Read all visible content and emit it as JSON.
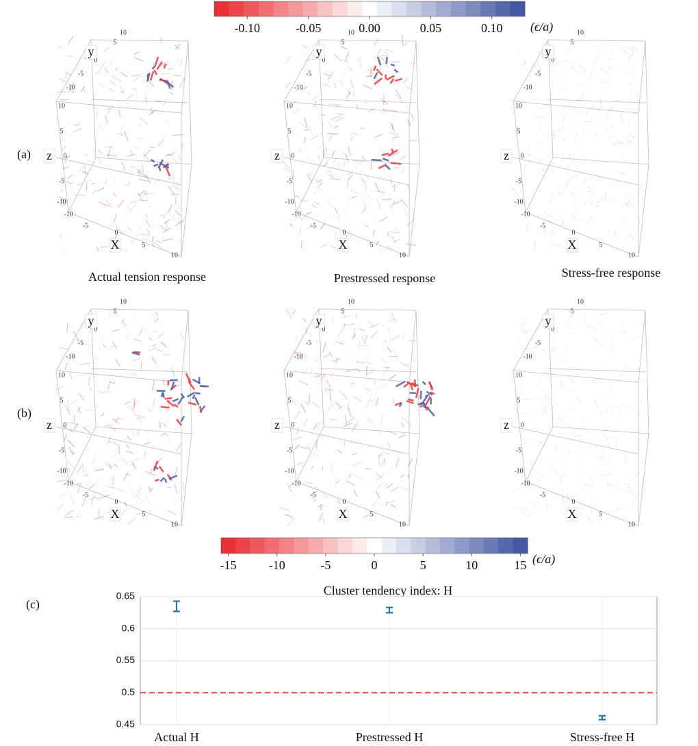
{
  "colorbar_top": {
    "range": [
      -0.127,
      0.127
    ],
    "unit": "(ϵ/a)",
    "ticks": [
      {
        "value": -0.1,
        "label": "-0.10"
      },
      {
        "value": -0.05,
        "label": "-0.05"
      },
      {
        "value": 0,
        "label": "0.00"
      },
      {
        "value": 0.05,
        "label": "0.05"
      },
      {
        "value": 0.1,
        "label": "0.10"
      }
    ]
  },
  "colorbar_bottom": {
    "range": [
      -15.75,
      15.75
    ],
    "unit": "(ϵ/a)",
    "ticks": [
      -15,
      -10,
      -5,
      0,
      5,
      10,
      15
    ]
  },
  "rows": [
    {
      "label": "(a)",
      "panels": [
        "Actual tension response",
        "Prestressed response",
        "Stress-free response"
      ]
    },
    {
      "label": "(b)"
    }
  ],
  "cube_axes": {
    "x": "X",
    "y": "y",
    "z": "z",
    "ticks": [
      -10,
      -5,
      0,
      5,
      10
    ]
  },
  "chart_data": {
    "type": "errorbar",
    "label": "(c)",
    "title": "Cluster tendency index: H",
    "categories": [
      "Actual H",
      "Prestressed H",
      "Stress-free H"
    ],
    "values": [
      0.635,
      0.629,
      0.461
    ],
    "errors": [
      0.008,
      0.004,
      0.003
    ],
    "color": "#1f77b4",
    "ylim": [
      0.45,
      0.65
    ],
    "yticks": [
      0.45,
      0.5,
      0.55,
      0.6,
      0.65
    ],
    "grid": true,
    "reference_line": 0.5,
    "reference_color": "#e8403a"
  }
}
